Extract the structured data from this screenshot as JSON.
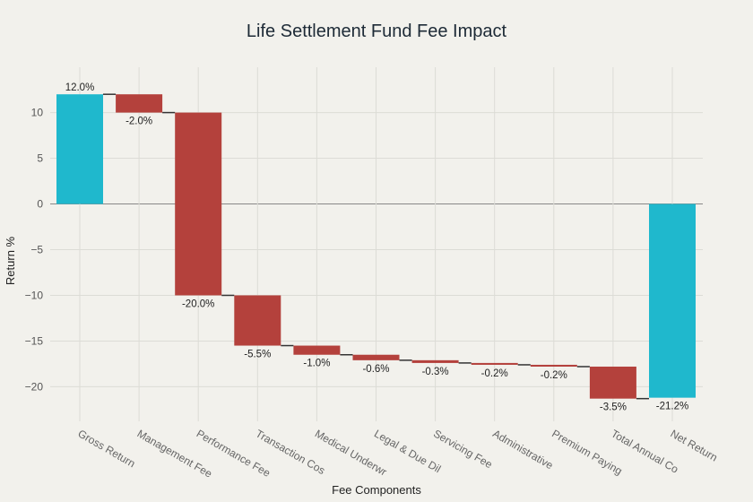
{
  "chart_data": {
    "type": "bar",
    "subtype": "waterfall",
    "title": "Life Settlement Fund Fee Impact",
    "xlabel": "Fee Components",
    "ylabel": "Return %",
    "ylim": [
      -23,
      13
    ],
    "yticks": [
      -20,
      -15,
      -10,
      -5,
      0,
      5,
      10
    ],
    "grid": true,
    "legend": "none",
    "categories": [
      "Gross Return",
      "Management Fee",
      "Performance Fee",
      "Transaction Cos",
      "Medical Underwr",
      "Legal & Due Dil",
      "Servicing Fee",
      "Administrative",
      "Premium Paying",
      "Total Annual Co",
      "Net Return"
    ],
    "values": [
      12.0,
      -2.0,
      -20.0,
      -5.5,
      -1.0,
      -0.6,
      -0.3,
      -0.2,
      -0.2,
      -3.5,
      -21.2
    ],
    "measure": [
      "absolute",
      "relative",
      "relative",
      "relative",
      "relative",
      "relative",
      "relative",
      "relative",
      "relative",
      "relative",
      "total"
    ],
    "labels": [
      "12.0%",
      "-2.0%",
      "-20.0%",
      "-5.5%",
      "-1.0%",
      "-0.6%",
      "-0.3%",
      "-0.2%",
      "-0.2%",
      "-3.5%",
      "-21.2%"
    ],
    "colors": {
      "total": "#1fb8cd",
      "decrease": "#b4413c",
      "connector": "#333333",
      "zero_line": "#888888",
      "grid": "#dcdcd6"
    }
  }
}
